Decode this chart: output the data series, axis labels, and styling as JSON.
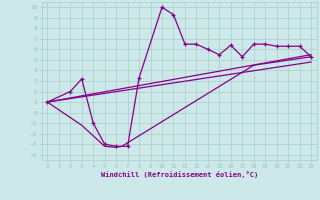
{
  "xlabel": "Windchill (Refroidissement éolien,°C)",
  "bg_color": "#cce8e8",
  "grid_color": "#aacccc",
  "line_color": "#880088",
  "xlim": [
    -0.5,
    23.5
  ],
  "ylim": [
    -4.5,
    10.5
  ],
  "xticks": [
    0,
    1,
    2,
    3,
    4,
    5,
    6,
    7,
    8,
    9,
    10,
    11,
    12,
    13,
    14,
    15,
    16,
    17,
    18,
    19,
    20,
    21,
    22,
    23
  ],
  "yticks": [
    -4,
    -3,
    -2,
    -1,
    0,
    1,
    2,
    3,
    4,
    5,
    6,
    7,
    8,
    9,
    10
  ],
  "curve_main_x": [
    0,
    2,
    3,
    4,
    5,
    6,
    7,
    8,
    10,
    11,
    12,
    13,
    14,
    15,
    16,
    17,
    18,
    19,
    20,
    21,
    22,
    23
  ],
  "curve_main_y": [
    1.0,
    2.0,
    3.2,
    -1.0,
    -3.0,
    -3.2,
    -3.2,
    3.3,
    10.0,
    9.3,
    6.5,
    6.5,
    6.0,
    5.5,
    6.4,
    5.3,
    6.5,
    6.5,
    6.3,
    6.3,
    6.3,
    5.3
  ],
  "curve_lower_x": [
    0,
    3,
    5,
    6,
    6.5,
    18,
    23
  ],
  "curve_lower_y": [
    1.0,
    -1.2,
    -3.2,
    -3.3,
    -3.2,
    4.5,
    5.3
  ],
  "line1_x": [
    0,
    23
  ],
  "line1_y": [
    1.0,
    5.5
  ],
  "line2_x": [
    0,
    23
  ],
  "line2_y": [
    1.0,
    4.8
  ]
}
